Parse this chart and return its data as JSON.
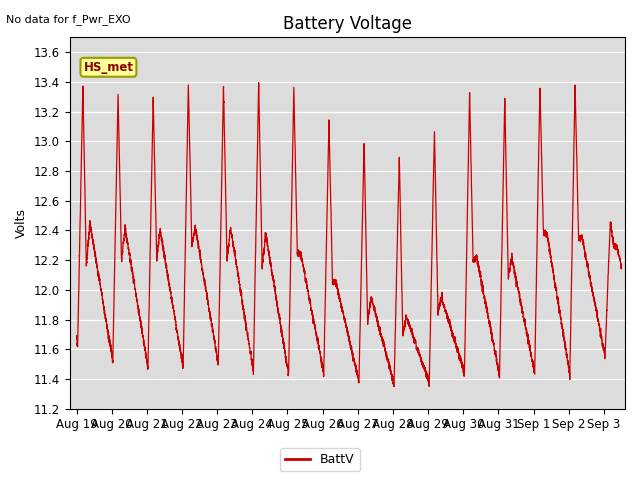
{
  "title": "Battery Voltage",
  "ylabel": "Volts",
  "no_data_label": "No data for f_Pwr_EXO",
  "hs_met_label": "HS_met",
  "legend_label": "BattV",
  "line_color": "#cc0000",
  "bg_color": "#dcdcdc",
  "ylim": [
    11.2,
    13.7
  ],
  "yticks": [
    11.2,
    11.4,
    11.6,
    11.8,
    12.0,
    12.2,
    12.4,
    12.6,
    12.8,
    13.0,
    13.2,
    13.4,
    13.6
  ],
  "x_tick_labels": [
    "Aug 19",
    "Aug 20",
    "Aug 21",
    "Aug 22",
    "Aug 23",
    "Aug 24",
    "Aug 25",
    "Aug 26",
    "Aug 27",
    "Aug 28",
    "Aug 29",
    "Aug 30",
    "Aug 31",
    "Sep 1",
    "Sep 2",
    "Sep 3"
  ],
  "title_fontsize": 12,
  "label_fontsize": 9,
  "tick_fontsize": 8.5,
  "legend_fontsize": 9
}
